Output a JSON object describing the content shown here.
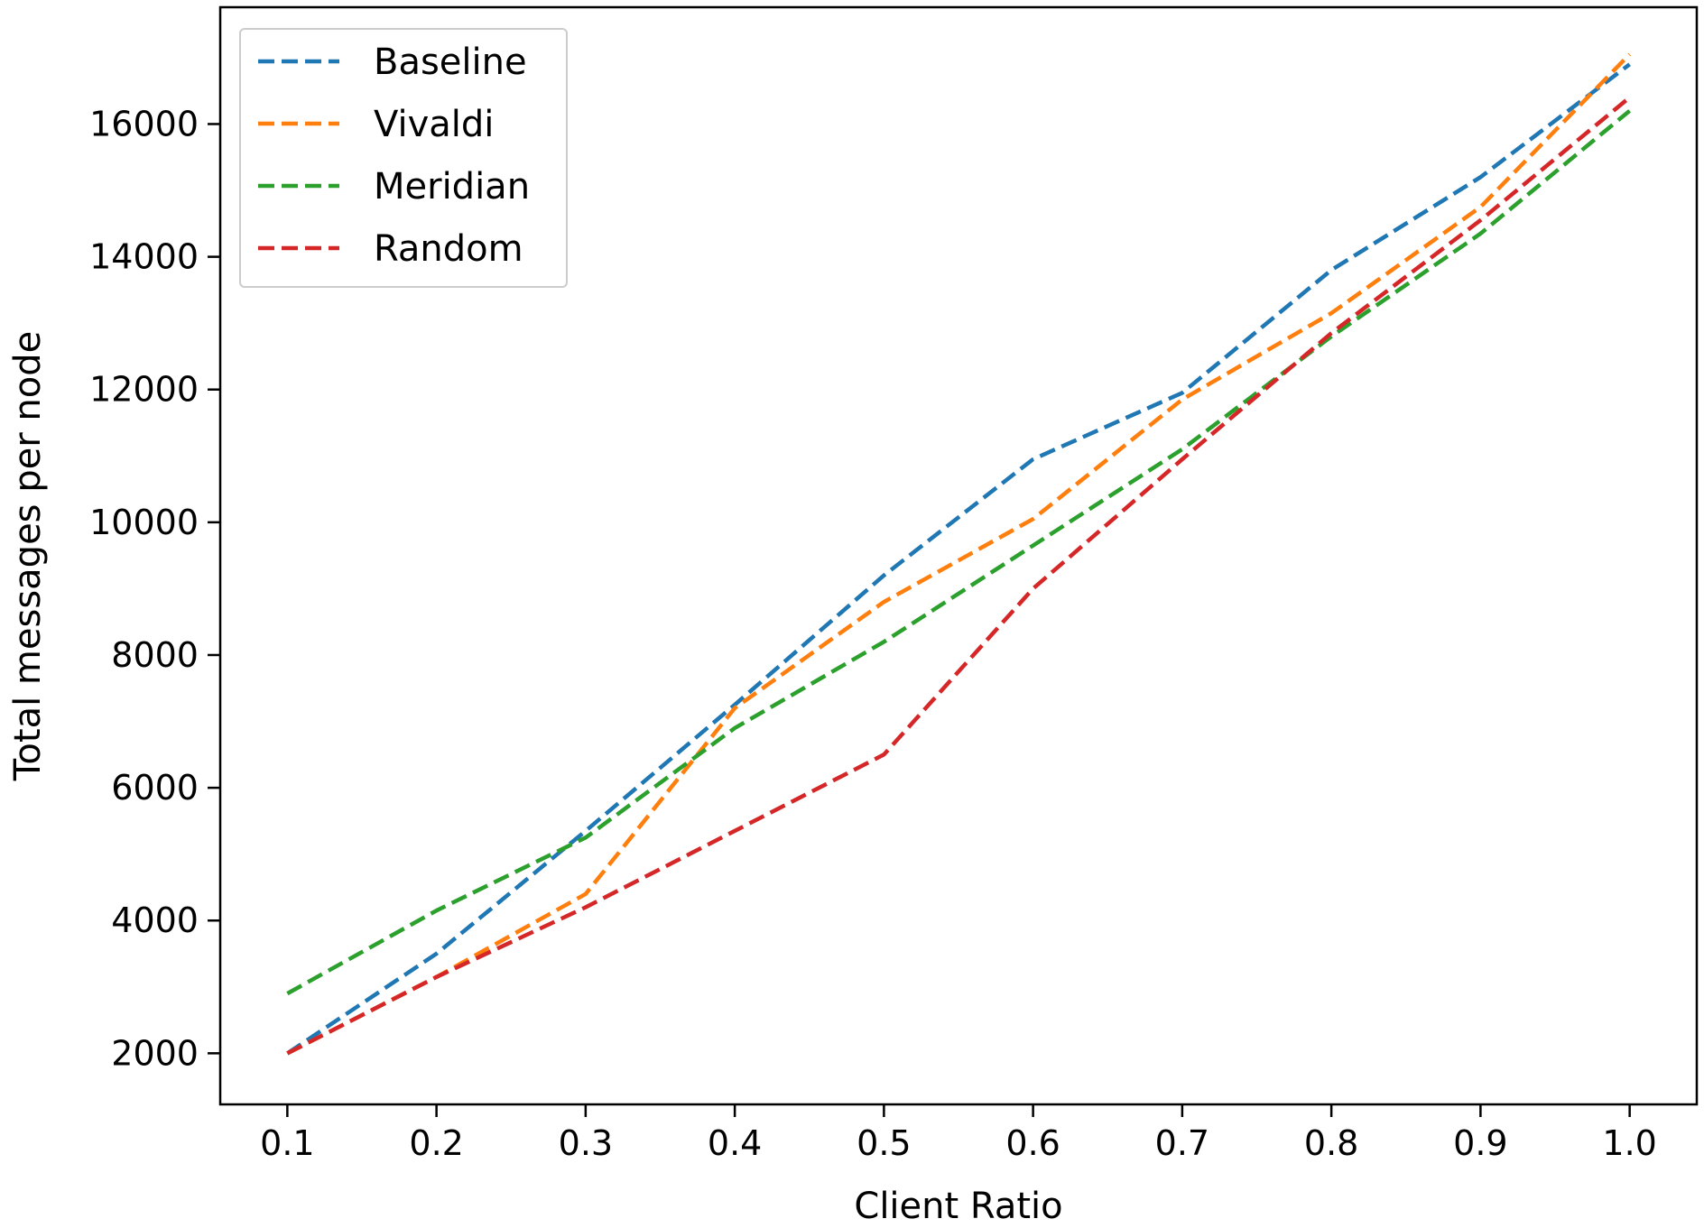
{
  "chart_data": {
    "type": "line",
    "title": "",
    "xlabel": "Client Ratio",
    "ylabel": "Total messages per node",
    "x": [
      0.1,
      0.2,
      0.3,
      0.4,
      0.5,
      0.6,
      0.7,
      0.8,
      0.9,
      1.0
    ],
    "x_tick_labels": [
      "0.1",
      "0.2",
      "0.3",
      "0.4",
      "0.5",
      "0.6",
      "0.7",
      "0.8",
      "0.9",
      "1.0"
    ],
    "xlim": [
      0.055,
      1.045
    ],
    "y_ticks": [
      2000,
      4000,
      6000,
      8000,
      10000,
      12000,
      14000,
      16000
    ],
    "y_tick_labels": [
      "2000",
      "4000",
      "6000",
      "8000",
      "10000",
      "12000",
      "14000",
      "16000"
    ],
    "ylim": [
      1230,
      17760
    ],
    "grid": false,
    "line_style": "dashed",
    "legend_position": "top-left",
    "series": [
      {
        "name": "Baseline",
        "color": "#1f77b4",
        "values": [
          2000,
          3500,
          5350,
          7250,
          9200,
          10950,
          11950,
          13800,
          15200,
          16900
        ]
      },
      {
        "name": "Vivaldi",
        "color": "#ff7f0e",
        "values": [
          2000,
          3150,
          4400,
          7200,
          8800,
          10050,
          11850,
          13150,
          14750,
          17050
        ]
      },
      {
        "name": "Meridian",
        "color": "#2ca02c",
        "values": [
          2900,
          4150,
          5250,
          6900,
          8200,
          9650,
          11100,
          12800,
          14350,
          16200
        ]
      },
      {
        "name": "Random",
        "color": "#d62728",
        "values": [
          2000,
          3150,
          4200,
          5350,
          6500,
          9000,
          10950,
          12850,
          14550,
          16400
        ]
      }
    ]
  }
}
